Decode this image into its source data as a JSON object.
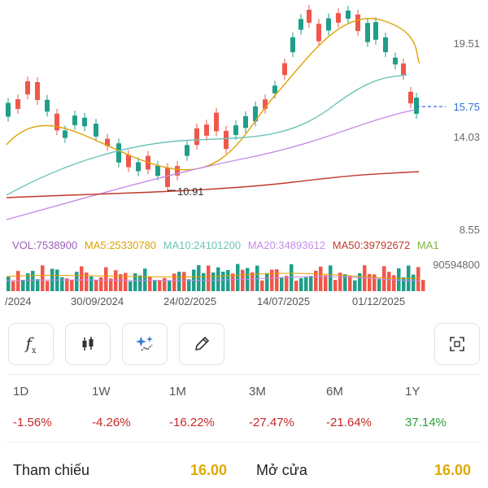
{
  "chart": {
    "price_ticks": [
      "19.51",
      "14.03",
      "8.55"
    ],
    "current_price": "15.75",
    "low_marker": "10.91",
    "current_color": "#2f6fd6",
    "up_color": "#1f9e8a",
    "down_color": "#f0574b"
  },
  "ma_legend": [
    {
      "text": "VOL:7538900",
      "color": "#9b5fc0"
    },
    {
      "text": "MA5:25330780",
      "color": "#e0a000"
    },
    {
      "text": "MA10:24101200",
      "color": "#6cc4b8"
    },
    {
      "text": "MA20:34893612",
      "color": "#c58ee8"
    },
    {
      "text": "MA50:39792672",
      "color": "#c0392b"
    },
    {
      "text": "MA1",
      "color": "#7cb342"
    }
  ],
  "volume_max": "90594800",
  "dates": [
    "/2024",
    "30/09/2024",
    "24/02/2025",
    "14/07/2025",
    "01/12/2025"
  ],
  "toolbar": [
    {
      "icon": "function-icon"
    },
    {
      "icon": "candlestick-icon"
    },
    {
      "icon": "sparkle-icon"
    },
    {
      "icon": "pencil-icon"
    },
    {
      "icon": "fullscreen-icon"
    }
  ],
  "periods": [
    {
      "label": "1D",
      "value": "-1.56%",
      "color": "#c62828"
    },
    {
      "label": "1W",
      "value": "-4.26%",
      "color": "#c62828"
    },
    {
      "label": "1M",
      "value": "-16.22%",
      "color": "#c62828"
    },
    {
      "label": "3M",
      "value": "-27.47%",
      "color": "#c62828"
    },
    {
      "label": "6M",
      "value": "-21.64%",
      "color": "#c62828"
    },
    {
      "label": "1Y",
      "value": "37.14%",
      "color": "#2e9e3a"
    }
  ],
  "reference": {
    "label": "Tham chiếu",
    "value": "16.00"
  },
  "open": {
    "label": "Mở cửa",
    "value": "16.00"
  }
}
